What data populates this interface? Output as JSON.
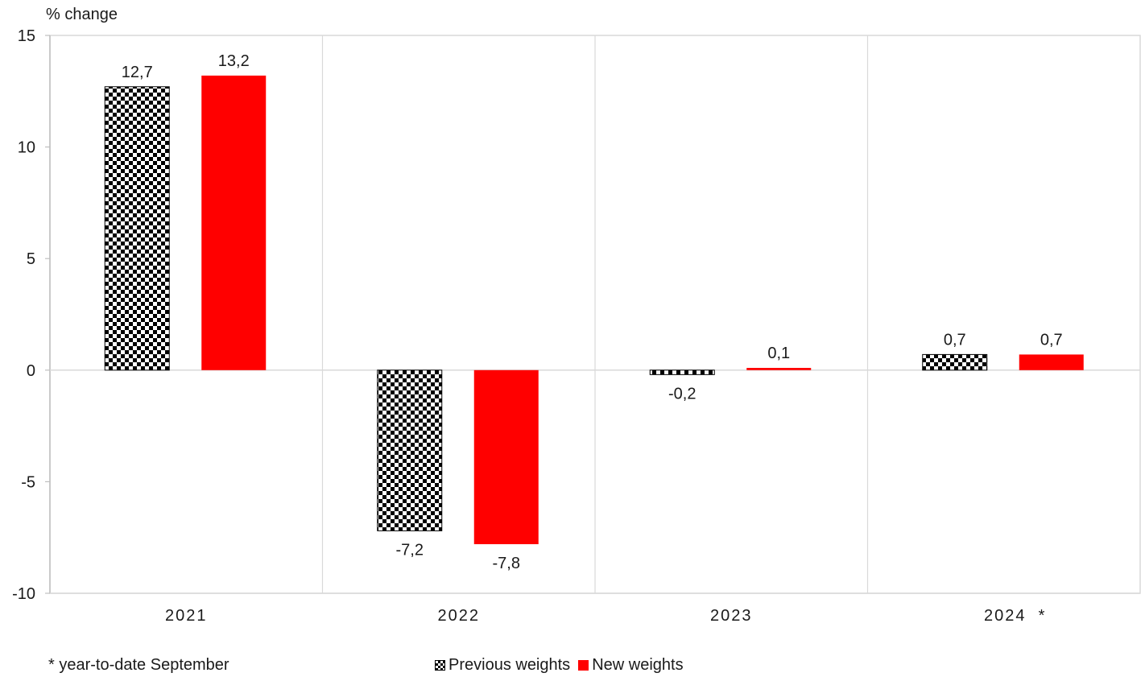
{
  "chart_data": {
    "type": "bar",
    "ylabel": "% change",
    "categories": [
      "2021",
      "2022",
      "2023",
      "2024  *"
    ],
    "series": [
      {
        "name": "Previous weights",
        "values": [
          12.7,
          -7.2,
          -0.2,
          0.7
        ],
        "labels": [
          "12,7",
          "-7,2",
          "-0,2",
          "0,7"
        ],
        "color": "#000000",
        "pattern": "checkerboard"
      },
      {
        "name": "New weights",
        "values": [
          13.2,
          -7.8,
          0.1,
          0.7
        ],
        "labels": [
          "13,2",
          "-7,8",
          "0,1",
          "0,7"
        ],
        "color": "#ff0000",
        "pattern": "solid"
      }
    ],
    "ylim": [
      -10,
      15
    ],
    "yticks": [
      -10,
      -5,
      0,
      5,
      10,
      15
    ],
    "grid": "vertical category separators",
    "legend": "bottom"
  },
  "footnote": "* year-to-date  September",
  "colors": {
    "grid": "#d9d9d9",
    "axis": "#bfbfbf",
    "new": "#ff0000",
    "previous": "#000000"
  }
}
